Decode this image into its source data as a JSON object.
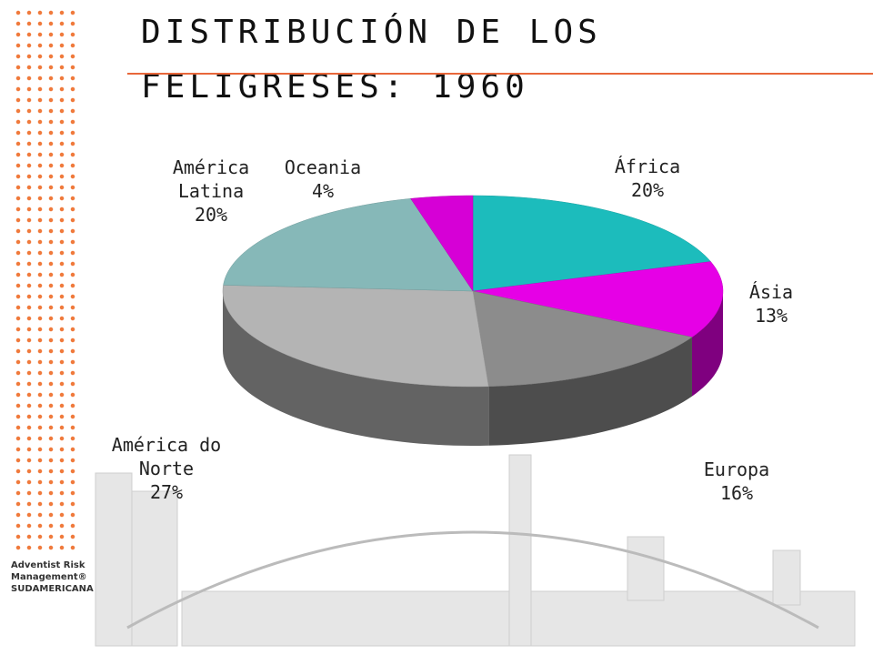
{
  "chart_data": {
    "type": "pie3d",
    "title": "DISTRIBUCIÓN DE LOS FELIGRESES: 1960",
    "categories": [
      "África",
      "Ásia",
      "Europa",
      "América do Norte",
      "América Latina",
      "Oceania"
    ],
    "values": [
      20,
      13,
      16,
      27,
      20,
      4
    ],
    "value_labels": [
      "20%",
      "13%",
      "16%",
      "27%",
      "20%",
      "4%"
    ],
    "colors": [
      "#1cbcbc",
      "#e600e6",
      "#8c8c8c",
      "#b4b4b4",
      "#86b8b8",
      "#d600d6"
    ]
  },
  "logo": {
    "lines": [
      "Adventist Risk",
      "Management®",
      "SUDAMERICANA"
    ]
  }
}
